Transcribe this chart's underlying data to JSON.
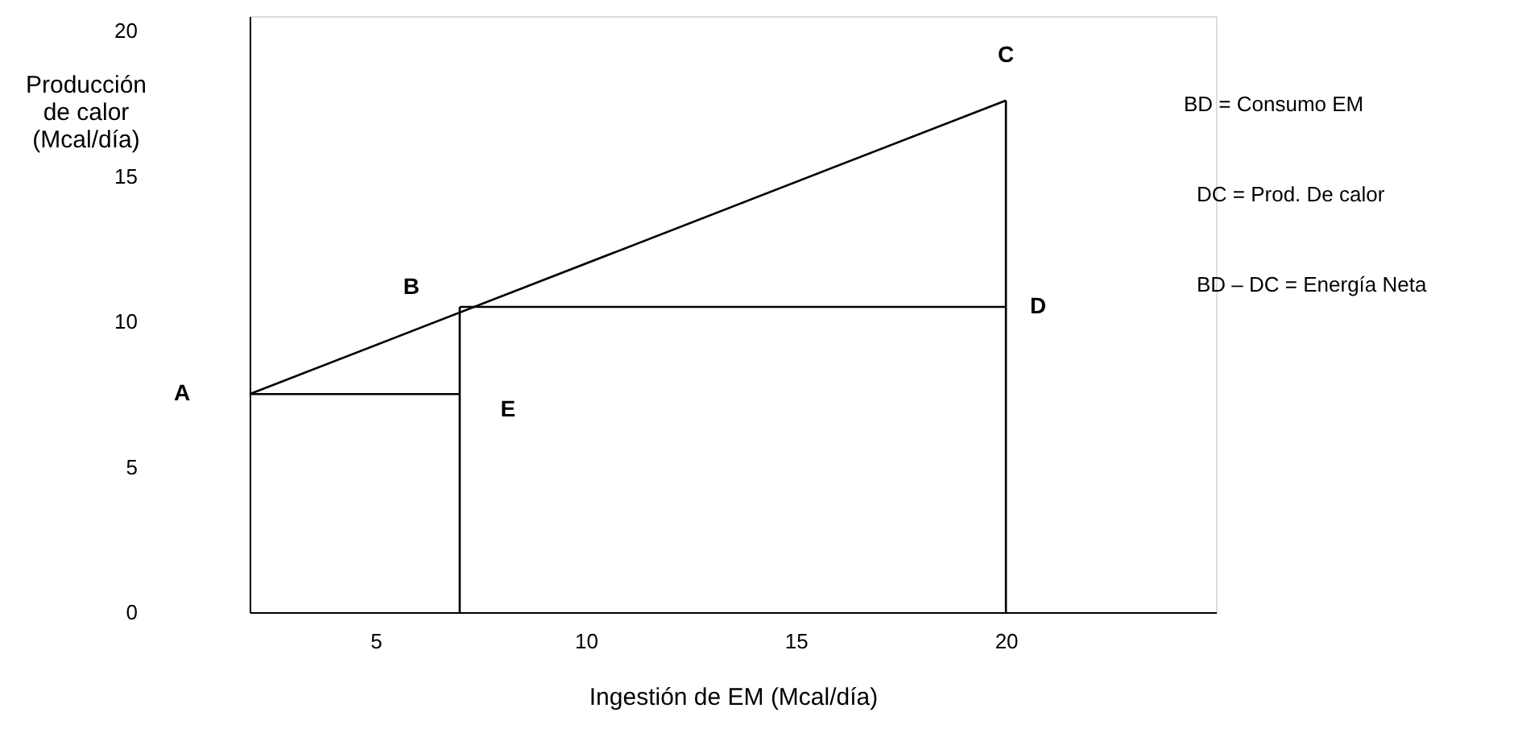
{
  "chart_data": {
    "type": "line",
    "xlabel": "Ingestión de EM (Mcal/día)",
    "ylabel": "Producción de calor (Mcal/día)",
    "xlim": [
      2,
      25
    ],
    "xticks": [
      5,
      10,
      15,
      20
    ],
    "ylim": [
      0,
      20.5
    ],
    "yticks": [
      0,
      5,
      10,
      15,
      20
    ],
    "grid": false,
    "marker": "none",
    "line_style": "solid",
    "series": [
      {
        "color": "#000000",
        "x": [
          2,
          20
        ],
        "values": [
          7.5,
          17.6
        ]
      },
      {
        "color": "#000000",
        "x": [
          2,
          7
        ],
        "values": [
          7.5,
          7.5
        ]
      },
      {
        "color": "#000000",
        "x": [
          7,
          20
        ],
        "values": [
          10.5,
          10.5
        ]
      },
      {
        "color": "#000000",
        "x": [
          7,
          7
        ],
        "values": [
          0,
          10.5
        ]
      },
      {
        "color": "#000000",
        "x": [
          20,
          20
        ],
        "values": [
          0,
          17.6
        ]
      }
    ],
    "annotations": [
      {
        "text": "A",
        "x": 2,
        "y": 7.5
      },
      {
        "text": "B",
        "x": 7,
        "y": 10.5
      },
      {
        "text": "C",
        "x": 20,
        "y": 17.6
      },
      {
        "text": "D",
        "x": 20,
        "y": 10.5
      },
      {
        "text": "E",
        "x": 7,
        "y": 7.5
      },
      "BD = Consumo EM",
      "DC = Prod. De calor",
      "BD – DC = Energía Neta"
    ]
  }
}
